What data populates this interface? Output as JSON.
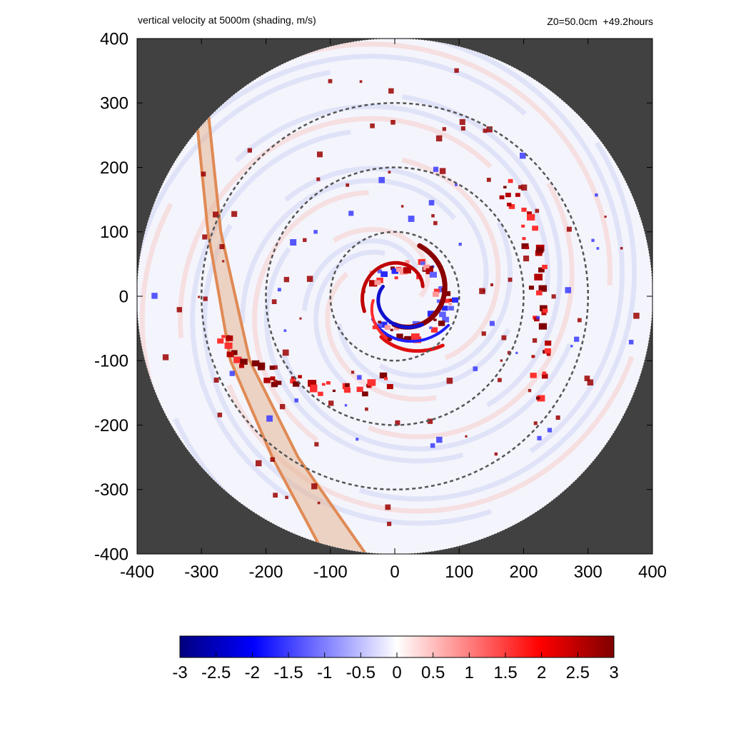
{
  "header": {
    "title": "vertical velocity at 5000m (shading, m/s)",
    "info": "Z0=50.0cm  +49.2hours"
  },
  "colors": {
    "background_outside": "#414141",
    "low": "#00007f",
    "mid_low": "#0000ff",
    "zero": "#ffffff",
    "mid_high": "#ff0000",
    "high": "#7f0000",
    "band_fill": "#e3b08a",
    "band_edge": "#e08a55",
    "ring": "#555555"
  },
  "chart_data": {
    "type": "heatmap",
    "title": "vertical velocity at 5000m (shading, m/s)",
    "xlim": [
      -400,
      400
    ],
    "ylim": [
      -400,
      400
    ],
    "x_ticks": [
      -400,
      -300,
      -200,
      -100,
      0,
      100,
      200,
      300,
      400
    ],
    "y_ticks": [
      -400,
      -300,
      -200,
      -100,
      0,
      100,
      200,
      300,
      400
    ],
    "domain_radius": 400,
    "range_rings": [
      100,
      200,
      300
    ],
    "colorbar": {
      "min": -3,
      "max": 3,
      "ticks": [
        "-3",
        "-2.5",
        "-2",
        "-1.5",
        "-1",
        "-0.5",
        "0",
        "0.5",
        "1",
        "1.5",
        "2",
        "2.5",
        "3"
      ]
    },
    "features": [
      {
        "name": "rainband-south",
        "type": "updraft-band",
        "points": [
          [
            -280,
            -60
          ],
          [
            -220,
            -110
          ],
          [
            -150,
            -135
          ],
          [
            -80,
            -145
          ],
          [
            0,
            -120
          ]
        ]
      },
      {
        "name": "eyewall",
        "type": "mixed",
        "points": [
          [
            -40,
            20
          ],
          [
            0,
            50
          ],
          [
            50,
            40
          ],
          [
            80,
            0
          ],
          [
            60,
            -40
          ],
          [
            0,
            -60
          ],
          [
            -30,
            -30
          ]
        ]
      },
      {
        "name": "outer-band-east",
        "type": "updraft-cells",
        "points": [
          [
            160,
            180
          ],
          [
            200,
            120
          ],
          [
            220,
            40
          ],
          [
            230,
            -60
          ],
          [
            210,
            -160
          ]
        ]
      },
      {
        "name": "land-strip",
        "type": "shaded-band",
        "west_edge": [
          [
            -310,
            300
          ],
          [
            -290,
            100
          ],
          [
            -255,
            -100
          ],
          [
            -190,
            -250
          ],
          [
            -110,
            -400
          ]
        ],
        "east_edge": [
          [
            -290,
            290
          ],
          [
            -270,
            100
          ],
          [
            -225,
            -100
          ],
          [
            -150,
            -250
          ],
          [
            -45,
            -400
          ]
        ]
      }
    ]
  }
}
